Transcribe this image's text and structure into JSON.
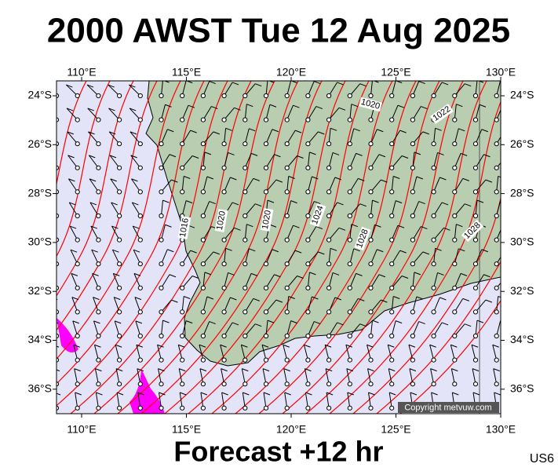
{
  "header": {
    "title": "2000 AWST Tue 12 Aug 2025"
  },
  "footer": {
    "caption": "Forecast +12 hr",
    "code": "US6"
  },
  "map": {
    "lon_labels": [
      "110°E",
      "115°E",
      "120°E",
      "125°E",
      "130°E"
    ],
    "lat_labels": [
      "24°S",
      "26°S",
      "28°S",
      "30°S",
      "32°S",
      "34°S",
      "36°S"
    ],
    "isobar_labels": [
      "1020",
      "1022",
      "1016",
      "1020",
      "1020",
      "1024",
      "1028",
      "1028"
    ],
    "copyright": "Copyright metvuw.com"
  }
}
